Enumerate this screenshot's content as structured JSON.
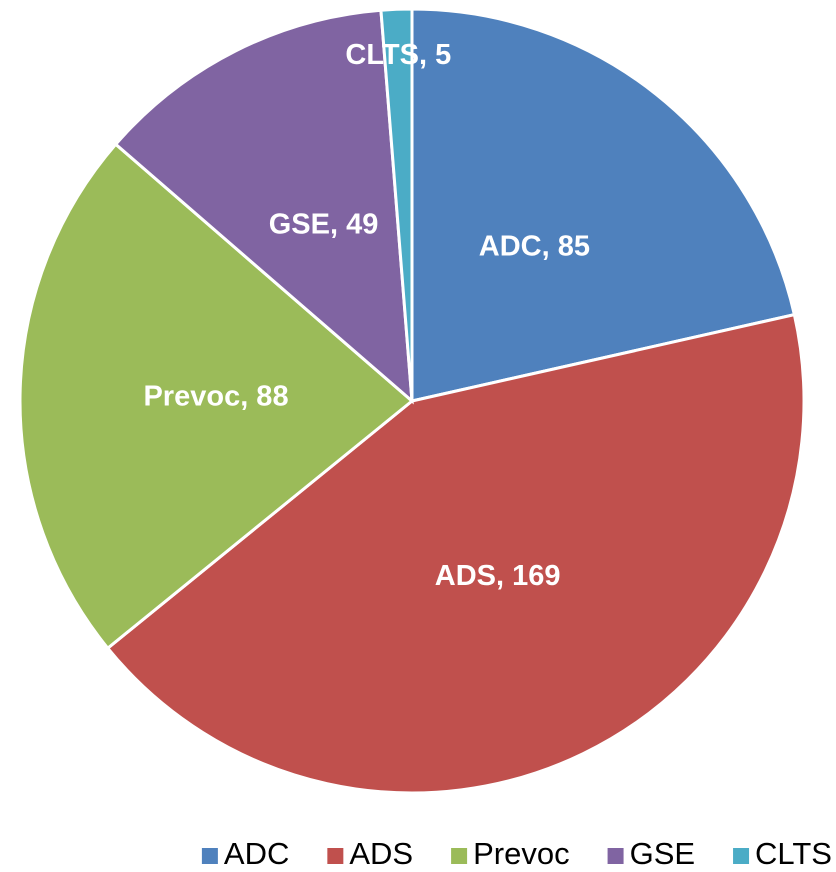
{
  "chart_data": {
    "type": "pie",
    "categories": [
      "ADC",
      "ADS",
      "Prevoc",
      "GSE",
      "CLTS"
    ],
    "values": [
      85,
      169,
      88,
      49,
      5
    ],
    "value_labels": [
      "ADC, 85",
      "ADS, 169",
      "Prevoc, 88",
      "GSE, 49",
      "CLTS, 5"
    ],
    "colors": [
      "#4f81bd",
      "#c0504d",
      "#9bbb59",
      "#8064a2",
      "#4bacc6"
    ],
    "legend": "bottom"
  }
}
